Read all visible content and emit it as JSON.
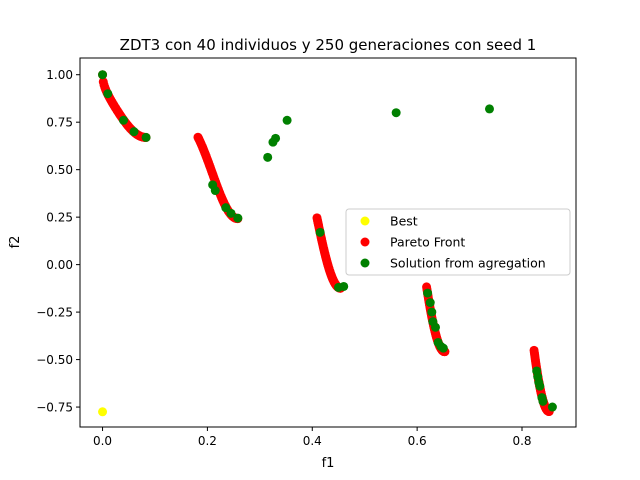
{
  "chart_data": {
    "type": "scatter",
    "title": "ZDT3 con 40 individuos y 250 generaciones con seed 1",
    "xlabel": "f1",
    "ylabel": "f2",
    "xlim": [
      -0.043,
      0.903
    ],
    "ylim": [
      -0.855,
      1.088
    ],
    "xticks": [
      0.0,
      0.2,
      0.4,
      0.6,
      0.8
    ],
    "xtick_labels": [
      "0.0",
      "0.2",
      "0.4",
      "0.6",
      "0.8"
    ],
    "yticks": [
      -0.75,
      -0.5,
      -0.25,
      0.0,
      0.25,
      0.5,
      0.75,
      1.0
    ],
    "ytick_labels": [
      "−0.75",
      "−0.50",
      "−0.25",
      "0.00",
      "0.25",
      "0.50",
      "0.75",
      "1.00"
    ],
    "grid": false,
    "legend_position": "center-right",
    "series": [
      {
        "name": "Best",
        "color": "#ffff00",
        "points": [
          [
            0.0,
            -0.775
          ]
        ]
      },
      {
        "name": "Pareto Front",
        "color": "#ff0000",
        "sampled_from": "ZDT3 front",
        "segments": [
          [
            0.0,
            0.083
          ],
          [
            0.182,
            0.258
          ],
          [
            0.409,
            0.454
          ],
          [
            0.618,
            0.653
          ],
          [
            0.823,
            0.852
          ]
        ],
        "samples_per_segment": 60
      },
      {
        "name": "Solution from agregation",
        "color": "#008000",
        "points": [
          [
            0.0,
            1.0
          ],
          [
            0.01,
            0.9
          ],
          [
            0.04,
            0.76
          ],
          [
            0.06,
            0.7
          ],
          [
            0.083,
            0.67
          ],
          [
            0.21,
            0.42
          ],
          [
            0.215,
            0.39
          ],
          [
            0.235,
            0.3
          ],
          [
            0.245,
            0.27
          ],
          [
            0.258,
            0.245
          ],
          [
            0.315,
            0.565
          ],
          [
            0.325,
            0.645
          ],
          [
            0.33,
            0.665
          ],
          [
            0.352,
            0.76
          ],
          [
            0.415,
            0.17
          ],
          [
            0.45,
            -0.12
          ],
          [
            0.46,
            -0.115
          ],
          [
            0.56,
            0.8
          ],
          [
            0.738,
            0.82
          ],
          [
            0.62,
            -0.15
          ],
          [
            0.625,
            -0.2
          ],
          [
            0.628,
            -0.25
          ],
          [
            0.63,
            -0.3
          ],
          [
            0.635,
            -0.33
          ],
          [
            0.64,
            -0.41
          ],
          [
            0.645,
            -0.43
          ],
          [
            0.65,
            -0.44
          ],
          [
            0.828,
            -0.56
          ],
          [
            0.83,
            -0.59
          ],
          [
            0.832,
            -0.62
          ],
          [
            0.834,
            -0.64
          ],
          [
            0.838,
            -0.7
          ],
          [
            0.84,
            -0.72
          ],
          [
            0.858,
            -0.75
          ]
        ]
      }
    ]
  }
}
